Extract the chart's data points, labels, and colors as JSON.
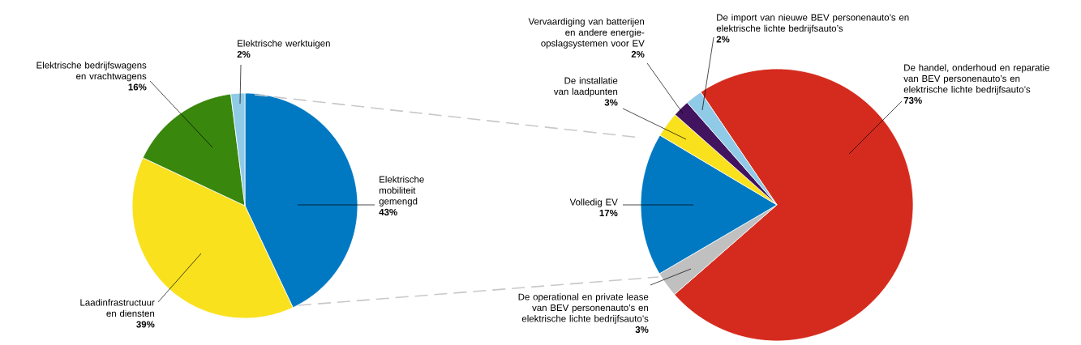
{
  "chart_data": [
    {
      "type": "pie",
      "categories": [
        "Elektrische mobiliteit gemengd",
        "Laadinfrastructuur en diensten",
        "Elektrische bedrijfswagens en vrachtwagens",
        "Elektrische werktuigen"
      ],
      "values": [
        43,
        39,
        16,
        2
      ],
      "value_labels": [
        "43%",
        "39%",
        "16%",
        "2%"
      ],
      "colors": [
        "#0079c2",
        "#f9e11e",
        "#39870c",
        "#8fcae7"
      ]
    },
    {
      "type": "pie",
      "categories": [
        "De handel, onderhoud en reparatie van BEV personenauto’s en elektrische lichte bedrijfsauto’s",
        "De operational en private lease van BEV personenauto’s en elektrische lichte bedrijfsauto’s",
        "Volledig EV",
        "De installatie van laadpunten",
        "Vervaardiging van batterijen en andere energie-opslagsystemen voor EV",
        "De import van nieuwe BEV personenauto’s en elektrische lichte bedrijfsauto’s"
      ],
      "values": [
        73,
        3,
        17,
        3,
        2,
        2
      ],
      "value_labels": [
        "73%",
        "3%",
        "17%",
        "3%",
        "2%",
        "2%"
      ],
      "colors": [
        "#d52b1e",
        "#c0c0c0",
        "#0079c2",
        "#f9e11e",
        "#42145f",
        "#8fcae7"
      ]
    }
  ]
}
